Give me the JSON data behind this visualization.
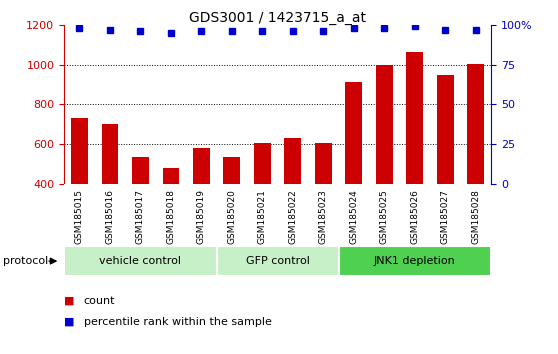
{
  "title": "GDS3001 / 1423715_a_at",
  "samples": [
    "GSM185015",
    "GSM185016",
    "GSM185017",
    "GSM185018",
    "GSM185019",
    "GSM185020",
    "GSM185021",
    "GSM185022",
    "GSM185023",
    "GSM185024",
    "GSM185025",
    "GSM185026",
    "GSM185027",
    "GSM185028"
  ],
  "counts": [
    730,
    700,
    535,
    480,
    580,
    535,
    605,
    630,
    605,
    915,
    1000,
    1065,
    950,
    1005
  ],
  "percentile_ranks": [
    98,
    97,
    96,
    95,
    96,
    96,
    96,
    96,
    96,
    98,
    98,
    99,
    97,
    97
  ],
  "groups": [
    {
      "label": "vehicle control",
      "start": 0,
      "end": 5,
      "color": "#c8f0c8"
    },
    {
      "label": "GFP control",
      "start": 5,
      "end": 9,
      "color": "#c8f0c8"
    },
    {
      "label": "JNK1 depletion",
      "start": 9,
      "end": 14,
      "color": "#50d050"
    }
  ],
  "bar_color": "#cc0000",
  "dot_color": "#0000cc",
  "left_ylim": [
    400,
    1200
  ],
  "left_yticks": [
    400,
    600,
    800,
    1000,
    1200
  ],
  "right_ylim": [
    0,
    100
  ],
  "right_yticks": [
    0,
    25,
    50,
    75,
    100
  ],
  "right_yticklabels": [
    "0",
    "25",
    "50",
    "75",
    "100%"
  ],
  "grid_yticks": [
    600,
    800,
    1000
  ],
  "left_tick_color": "#cc0000",
  "right_tick_color": "#0000cc",
  "legend_count_label": "count",
  "legend_pct_label": "percentile rank within the sample",
  "protocol_label": "protocol",
  "group_border_color": "white",
  "sample_bg_color": "#d0d0d0",
  "plot_bg": "#ffffff"
}
